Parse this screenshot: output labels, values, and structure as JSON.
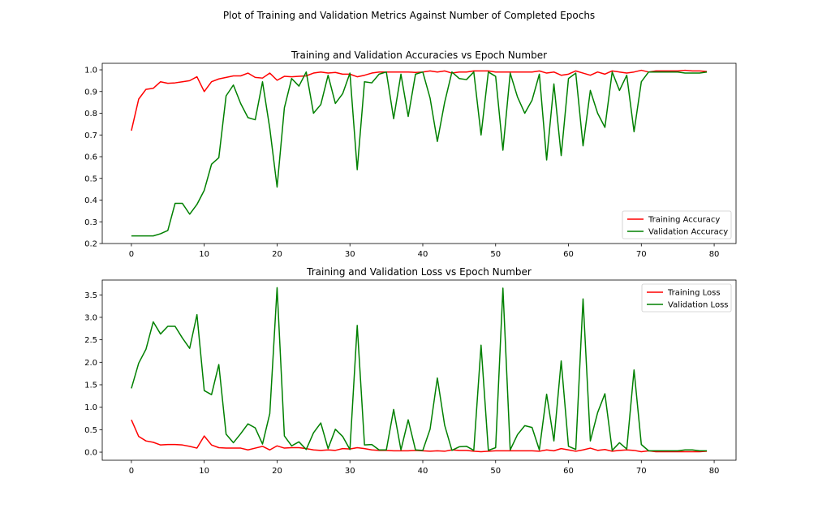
{
  "suptitle": "Plot of Training and Validation Metrics Against Number of Completed Epochs",
  "colors": {
    "training": "#ff0000",
    "validation": "#008000"
  },
  "chart_data": [
    {
      "type": "line",
      "title": "Training and Validation Accuracies vs Epoch Number",
      "xlabel": "",
      "ylabel": "",
      "xlim": [
        -4,
        83
      ],
      "ylim": [
        0.2,
        1.03
      ],
      "xticks": [
        0,
        10,
        20,
        30,
        40,
        50,
        60,
        70,
        80
      ],
      "yticks": [
        0.2,
        0.3,
        0.4,
        0.5,
        0.6,
        0.7,
        0.8,
        0.9,
        1.0
      ],
      "ytick_labels": [
        "0.2",
        "0.3",
        "0.4",
        "0.5",
        "0.6",
        "0.7",
        "0.8",
        "0.9",
        "1.0"
      ],
      "legend_position": "lower-right",
      "grid": false,
      "series": [
        {
          "name": "Training Accuracy",
          "color": "#ff0000",
          "values": [
            0.72,
            0.865,
            0.91,
            0.915,
            0.945,
            0.938,
            0.94,
            0.945,
            0.95,
            0.968,
            0.9,
            0.945,
            0.958,
            0.965,
            0.972,
            0.972,
            0.985,
            0.965,
            0.962,
            0.985,
            0.952,
            0.97,
            0.968,
            0.97,
            0.972,
            0.985,
            0.99,
            0.985,
            0.988,
            0.98,
            0.98,
            0.968,
            0.975,
            0.985,
            0.99,
            0.99,
            0.99,
            0.99,
            0.99,
            0.988,
            0.99,
            0.995,
            0.99,
            0.995,
            0.985,
            0.99,
            0.99,
            0.995,
            0.995,
            0.995,
            0.99,
            0.99,
            0.99,
            0.99,
            0.99,
            0.99,
            0.995,
            0.985,
            0.99,
            0.975,
            0.98,
            0.995,
            0.985,
            0.975,
            0.99,
            0.98,
            0.995,
            0.99,
            0.985,
            0.99,
            0.998,
            0.99,
            0.995,
            0.995,
            0.995,
            0.995,
            0.998,
            0.995,
            0.995,
            0.992
          ]
        },
        {
          "name": "Validation Accuracy",
          "color": "#008000",
          "values": [
            0.235,
            0.235,
            0.235,
            0.235,
            0.245,
            0.26,
            0.385,
            0.385,
            0.335,
            0.38,
            0.445,
            0.565,
            0.595,
            0.88,
            0.93,
            0.845,
            0.78,
            0.77,
            0.945,
            0.73,
            0.46,
            0.825,
            0.96,
            0.925,
            0.99,
            0.8,
            0.84,
            0.975,
            0.845,
            0.89,
            0.985,
            0.54,
            0.945,
            0.94,
            0.98,
            0.99,
            0.775,
            0.98,
            0.785,
            0.98,
            0.99,
            0.87,
            0.67,
            0.85,
            0.99,
            0.96,
            0.955,
            0.99,
            0.7,
            0.99,
            0.97,
            0.63,
            0.985,
            0.875,
            0.8,
            0.86,
            0.98,
            0.585,
            0.935,
            0.605,
            0.96,
            0.985,
            0.65,
            0.905,
            0.8,
            0.735,
            0.99,
            0.905,
            0.975,
            0.715,
            0.945,
            0.99,
            0.99,
            0.99,
            0.99,
            0.99,
            0.985,
            0.985,
            0.985,
            0.99
          ]
        }
      ]
    },
    {
      "type": "line",
      "title": "Training and Validation Loss vs Epoch Number",
      "xlabel": "",
      "ylabel": "",
      "xlim": [
        -4,
        83
      ],
      "ylim": [
        -0.18,
        3.83
      ],
      "xticks": [
        0,
        10,
        20,
        30,
        40,
        50,
        60,
        70,
        80
      ],
      "yticks": [
        0.0,
        0.5,
        1.0,
        1.5,
        2.0,
        2.5,
        3.0,
        3.5
      ],
      "ytick_labels": [
        "0.0",
        "0.5",
        "1.0",
        "1.5",
        "2.0",
        "2.5",
        "3.0",
        "3.5"
      ],
      "legend_position": "upper-right",
      "grid": false,
      "series": [
        {
          "name": "Training Loss",
          "color": "#ff0000",
          "values": [
            0.72,
            0.35,
            0.25,
            0.22,
            0.16,
            0.17,
            0.17,
            0.16,
            0.13,
            0.09,
            0.36,
            0.16,
            0.1,
            0.09,
            0.09,
            0.09,
            0.05,
            0.09,
            0.13,
            0.05,
            0.14,
            0.09,
            0.1,
            0.1,
            0.08,
            0.05,
            0.04,
            0.05,
            0.04,
            0.08,
            0.07,
            0.1,
            0.08,
            0.05,
            0.04,
            0.04,
            0.03,
            0.03,
            0.03,
            0.04,
            0.03,
            0.02,
            0.03,
            0.02,
            0.05,
            0.04,
            0.04,
            0.02,
            0.01,
            0.02,
            0.03,
            0.03,
            0.03,
            0.03,
            0.03,
            0.03,
            0.02,
            0.05,
            0.03,
            0.08,
            0.05,
            0.02,
            0.05,
            0.09,
            0.04,
            0.06,
            0.02,
            0.04,
            0.05,
            0.04,
            0.01,
            0.03,
            0.01,
            0.01,
            0.01,
            0.01,
            0.01,
            0.01,
            0.01,
            0.02
          ]
        },
        {
          "name": "Validation Loss",
          "color": "#008000",
          "values": [
            1.42,
            1.98,
            2.29,
            2.9,
            2.63,
            2.8,
            2.8,
            2.54,
            2.31,
            3.06,
            1.37,
            1.28,
            1.95,
            0.4,
            0.21,
            0.41,
            0.63,
            0.54,
            0.18,
            0.86,
            3.66,
            0.36,
            0.14,
            0.23,
            0.06,
            0.43,
            0.65,
            0.08,
            0.51,
            0.35,
            0.06,
            2.82,
            0.16,
            0.17,
            0.05,
            0.05,
            0.95,
            0.05,
            0.72,
            0.05,
            0.04,
            0.51,
            1.65,
            0.6,
            0.04,
            0.12,
            0.13,
            0.04,
            2.38,
            0.04,
            0.1,
            3.65,
            0.05,
            0.39,
            0.59,
            0.55,
            0.05,
            1.29,
            0.25,
            2.03,
            0.13,
            0.06,
            3.41,
            0.25,
            0.88,
            1.3,
            0.04,
            0.21,
            0.07,
            1.83,
            0.17,
            0.03,
            0.03,
            0.03,
            0.03,
            0.03,
            0.05,
            0.05,
            0.03,
            0.03
          ]
        }
      ]
    }
  ]
}
